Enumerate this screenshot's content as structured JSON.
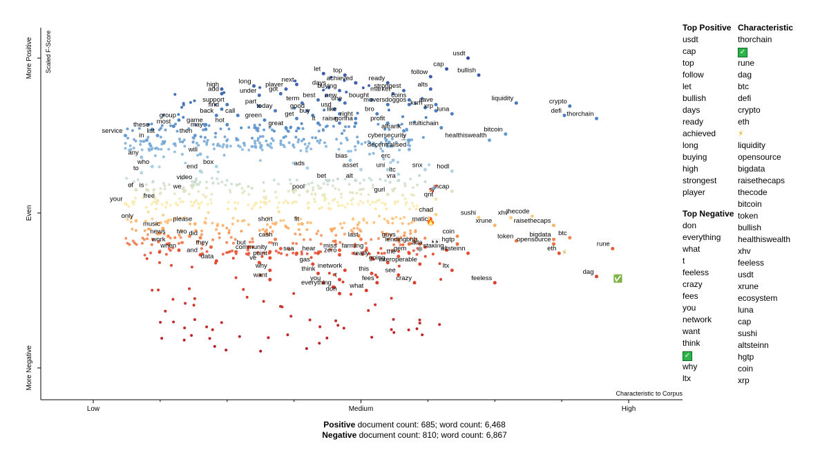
{
  "chart_data": {
    "type": "scatter",
    "title": "",
    "xlabel": "Characteristic to Corpus",
    "ylabel": "Scaled F-Score",
    "x_ticks": [
      "Low",
      "Medium",
      "High"
    ],
    "y_ticks": [
      "More Positive",
      "Even",
      "More Negative"
    ],
    "y_tick_values": [
      1,
      0,
      -1
    ],
    "xlim": [
      0,
      1
    ],
    "ylim": [
      -1,
      1
    ],
    "grid": false,
    "legend": "none",
    "color_scale": {
      "positive": "#3a56a8",
      "neutral": "#a9d3ea",
      "even": "#fde8a7",
      "negative": "#c2212b"
    },
    "points": [
      {
        "label": "usdt",
        "x": 0.7,
        "y": 1.0
      },
      {
        "label": "cap",
        "x": 0.66,
        "y": 0.93
      },
      {
        "label": "bullish",
        "x": 0.72,
        "y": 0.89
      },
      {
        "label": "follow",
        "x": 0.63,
        "y": 0.88
      },
      {
        "label": "let",
        "x": 0.43,
        "y": 0.9
      },
      {
        "label": "top",
        "x": 0.47,
        "y": 0.89
      },
      {
        "label": "achieved",
        "x": 0.49,
        "y": 0.84
      },
      {
        "label": "ready",
        "x": 0.55,
        "y": 0.84
      },
      {
        "label": "long",
        "x": 0.3,
        "y": 0.82
      },
      {
        "label": "next",
        "x": 0.38,
        "y": 0.83
      },
      {
        "label": "days",
        "x": 0.44,
        "y": 0.81
      },
      {
        "label": "high",
        "x": 0.24,
        "y": 0.8
      },
      {
        "label": "player",
        "x": 0.36,
        "y": 0.8
      },
      {
        "label": "buying",
        "x": 0.46,
        "y": 0.79
      },
      {
        "label": "alts",
        "x": 0.63,
        "y": 0.8
      },
      {
        "label": "strongest",
        "x": 0.58,
        "y": 0.79
      },
      {
        "label": "add",
        "x": 0.24,
        "y": 0.77
      },
      {
        "label": "under",
        "x": 0.31,
        "y": 0.76
      },
      {
        "label": "got",
        "x": 0.35,
        "y": 0.77
      },
      {
        "label": "market",
        "x": 0.56,
        "y": 0.77
      },
      {
        "label": "best",
        "x": 0.42,
        "y": 0.73
      },
      {
        "label": "new",
        "x": 0.46,
        "y": 0.73
      },
      {
        "label": "bought",
        "x": 0.52,
        "y": 0.73
      },
      {
        "label": "coins",
        "x": 0.59,
        "y": 0.73
      },
      {
        "label": "term",
        "x": 0.39,
        "y": 0.71
      },
      {
        "label": "one",
        "x": 0.47,
        "y": 0.71
      },
      {
        "label": "movers",
        "x": 0.55,
        "y": 0.7
      },
      {
        "label": "doggos",
        "x": 0.59,
        "y": 0.7
      },
      {
        "label": "aave",
        "x": 0.64,
        "y": 0.7
      },
      {
        "label": "liquidity",
        "x": 0.79,
        "y": 0.71
      },
      {
        "label": "support",
        "x": 0.25,
        "y": 0.7
      },
      {
        "label": "part",
        "x": 0.31,
        "y": 0.69
      },
      {
        "label": "ksm",
        "x": 0.62,
        "y": 0.68
      },
      {
        "label": "usd",
        "x": 0.45,
        "y": 0.67
      },
      {
        "label": "xrp",
        "x": 0.64,
        "y": 0.66
      },
      {
        "label": "crypto",
        "x": 0.89,
        "y": 0.69
      },
      {
        "label": "find",
        "x": 0.24,
        "y": 0.67
      },
      {
        "label": "today",
        "x": 0.34,
        "y": 0.66
      },
      {
        "label": "good",
        "x": 0.4,
        "y": 0.66
      },
      {
        "label": "like",
        "x": 0.46,
        "y": 0.64
      },
      {
        "label": "bro",
        "x": 0.53,
        "y": 0.64
      },
      {
        "label": "luna",
        "x": 0.67,
        "y": 0.64
      },
      {
        "label": "defi",
        "x": 0.88,
        "y": 0.63
      },
      {
        "label": "back",
        "x": 0.23,
        "y": 0.63
      },
      {
        "label": "call",
        "x": 0.27,
        "y": 0.63
      },
      {
        "label": "buy",
        "x": 0.41,
        "y": 0.63
      },
      {
        "label": "get",
        "x": 0.38,
        "y": 0.61
      },
      {
        "label": "right",
        "x": 0.49,
        "y": 0.61
      },
      {
        "label": "green",
        "x": 0.32,
        "y": 0.6
      },
      {
        "label": "thorchain",
        "x": 0.94,
        "y": 0.61
      },
      {
        "label": "group",
        "x": 0.16,
        "y": 0.6
      },
      {
        "label": "it",
        "x": 0.42,
        "y": 0.58
      },
      {
        "label": "raise",
        "x": 0.46,
        "y": 0.58
      },
      {
        "label": "gonna",
        "x": 0.49,
        "y": 0.58
      },
      {
        "label": "profit",
        "x": 0.55,
        "y": 0.58
      },
      {
        "label": "hot",
        "x": 0.25,
        "y": 0.57
      },
      {
        "label": "game",
        "x": 0.21,
        "y": 0.57
      },
      {
        "label": "most",
        "x": 0.15,
        "y": 0.56
      },
      {
        "label": "great",
        "x": 0.36,
        "y": 0.55
      },
      {
        "label": "multichain",
        "x": 0.65,
        "y": 0.55
      },
      {
        "label": "these",
        "x": 0.11,
        "y": 0.54
      },
      {
        "label": "may",
        "x": 0.21,
        "y": 0.54
      },
      {
        "label": "altrank",
        "x": 0.58,
        "y": 0.53
      },
      {
        "label": "service",
        "x": 0.06,
        "y": 0.5
      },
      {
        "label": "list",
        "x": 0.12,
        "y": 0.5
      },
      {
        "label": "then",
        "x": 0.19,
        "y": 0.5
      },
      {
        "label": "in",
        "x": 0.1,
        "y": 0.47
      },
      {
        "label": "bitcoin",
        "x": 0.77,
        "y": 0.51
      },
      {
        "label": "healthiswealth",
        "x": 0.74,
        "y": 0.47
      },
      {
        "label": "cybersecurity",
        "x": 0.59,
        "y": 0.47
      },
      {
        "label": "decentralised",
        "x": 0.59,
        "y": 0.41
      },
      {
        "label": "will",
        "x": 0.2,
        "y": 0.38
      },
      {
        "label": "any",
        "x": 0.09,
        "y": 0.36
      },
      {
        "label": "bias",
        "x": 0.48,
        "y": 0.34
      },
      {
        "label": "erc",
        "x": 0.56,
        "y": 0.34
      },
      {
        "label": "box",
        "x": 0.23,
        "y": 0.3
      },
      {
        "label": "who",
        "x": 0.11,
        "y": 0.3
      },
      {
        "label": "ads",
        "x": 0.4,
        "y": 0.29
      },
      {
        "label": "asset",
        "x": 0.5,
        "y": 0.28
      },
      {
        "label": "uni",
        "x": 0.55,
        "y": 0.28
      },
      {
        "label": "snx",
        "x": 0.62,
        "y": 0.28
      },
      {
        "label": "hodl",
        "x": 0.67,
        "y": 0.27
      },
      {
        "label": "end",
        "x": 0.2,
        "y": 0.27
      },
      {
        "label": "to",
        "x": 0.09,
        "y": 0.26
      },
      {
        "label": "ltc",
        "x": 0.57,
        "y": 0.25
      },
      {
        "label": "bet",
        "x": 0.44,
        "y": 0.21
      },
      {
        "label": "alt",
        "x": 0.49,
        "y": 0.21
      },
      {
        "label": "vra",
        "x": 0.57,
        "y": 0.21
      },
      {
        "label": "video",
        "x": 0.19,
        "y": 0.2
      },
      {
        "label": "of",
        "x": 0.08,
        "y": 0.15
      },
      {
        "label": "is",
        "x": 0.1,
        "y": 0.15
      },
      {
        "label": "we",
        "x": 0.17,
        "y": 0.14
      },
      {
        "label": "pool",
        "x": 0.4,
        "y": 0.14
      },
      {
        "label": "mcap",
        "x": 0.67,
        "y": 0.14
      },
      {
        "label": "gurl",
        "x": 0.55,
        "y": 0.12
      },
      {
        "label": "qnt",
        "x": 0.64,
        "y": 0.09
      },
      {
        "label": "free",
        "x": 0.12,
        "y": 0.08
      },
      {
        "label": "your",
        "x": 0.06,
        "y": 0.06
      },
      {
        "label": "chad",
        "x": 0.64,
        "y": -0.01
      },
      {
        "label": "sushi",
        "x": 0.72,
        "y": -0.03
      },
      {
        "label": "xhv",
        "x": 0.78,
        "y": -0.03
      },
      {
        "label": "thecode",
        "x": 0.82,
        "y": -0.02
      },
      {
        "label": "only",
        "x": 0.08,
        "y": -0.05
      },
      {
        "label": "matic",
        "x": 0.63,
        "y": -0.07
      },
      {
        "label": "please",
        "x": 0.19,
        "y": -0.07
      },
      {
        "label": "short",
        "x": 0.34,
        "y": -0.07
      },
      {
        "label": "fit",
        "x": 0.39,
        "y": -0.07
      },
      {
        "label": "xrune",
        "x": 0.75,
        "y": -0.08
      },
      {
        "label": "raisethecaps",
        "x": 0.86,
        "y": -0.08
      },
      {
        "label": "music",
        "x": 0.13,
        "y": -0.1
      },
      {
        "label": "news",
        "x": 0.14,
        "y": -0.15
      },
      {
        "label": "two",
        "x": 0.18,
        "y": -0.15
      },
      {
        "label": "did",
        "x": 0.2,
        "y": -0.16
      },
      {
        "label": "coin",
        "x": 0.68,
        "y": -0.15
      },
      {
        "label": "btc",
        "x": 0.89,
        "y": -0.16
      },
      {
        "label": "cash",
        "x": 0.34,
        "y": -0.17
      },
      {
        "label": "last",
        "x": 0.5,
        "y": -0.17
      },
      {
        "label": "guys",
        "x": 0.57,
        "y": -0.17
      },
      {
        "label": "token",
        "x": 0.79,
        "y": -0.18
      },
      {
        "label": "bigdata",
        "x": 0.86,
        "y": -0.17
      },
      {
        "label": "work",
        "x": 0.14,
        "y": -0.2
      },
      {
        "label": "lending",
        "x": 0.59,
        "y": -0.2
      },
      {
        "label": "bnb",
        "x": 0.61,
        "y": -0.2
      },
      {
        "label": "hgtp",
        "x": 0.68,
        "y": -0.2
      },
      {
        "label": "opensource",
        "x": 0.86,
        "y": -0.2
      },
      {
        "label": "they",
        "x": 0.22,
        "y": -0.22
      },
      {
        "label": "but",
        "x": 0.29,
        "y": -0.22
      },
      {
        "label": "ada",
        "x": 0.62,
        "y": -0.22
      },
      {
        "label": "rune",
        "x": 0.97,
        "y": -0.23
      },
      {
        "label": "when",
        "x": 0.16,
        "y": -0.24
      },
      {
        "label": "m",
        "x": 0.35,
        "y": -0.23
      },
      {
        "label": "miss",
        "x": 0.46,
        "y": -0.24
      },
      {
        "label": "farming",
        "x": 0.51,
        "y": -0.24
      },
      {
        "label": "staking",
        "x": 0.66,
        "y": -0.24
      },
      {
        "label": "community",
        "x": 0.33,
        "y": -0.25
      },
      {
        "label": "sea",
        "x": 0.38,
        "y": -0.26
      },
      {
        "label": "hear",
        "x": 0.42,
        "y": -0.26
      },
      {
        "label": "gem",
        "x": 0.59,
        "y": -0.26
      },
      {
        "label": "altsteinn",
        "x": 0.7,
        "y": -0.26
      },
      {
        "label": "eth",
        "x": 0.87,
        "y": -0.26
      },
      {
        "label": "and",
        "x": 0.2,
        "y": -0.27
      },
      {
        "label": "zero",
        "x": 0.46,
        "y": -0.27
      },
      {
        "label": "point",
        "x": 0.33,
        "y": -0.29
      },
      {
        "label": "really",
        "x": 0.52,
        "y": -0.29
      },
      {
        "label": "the",
        "x": 0.57,
        "y": -0.28
      },
      {
        "label": "data",
        "x": 0.23,
        "y": -0.31
      },
      {
        "label": "ve",
        "x": 0.31,
        "y": -0.32
      },
      {
        "label": "gas",
        "x": 0.41,
        "y": -0.33
      },
      {
        "label": "going",
        "x": 0.55,
        "y": -0.32
      },
      {
        "label": "interoperable",
        "x": 0.61,
        "y": -0.33
      },
      {
        "label": "inetwork",
        "x": 0.47,
        "y": -0.37
      },
      {
        "label": "ltx",
        "x": 0.67,
        "y": -0.37
      },
      {
        "label": "why",
        "x": 0.33,
        "y": -0.37
      },
      {
        "label": "think",
        "x": 0.42,
        "y": -0.39
      },
      {
        "label": "this",
        "x": 0.52,
        "y": -0.39
      },
      {
        "label": "see",
        "x": 0.57,
        "y": -0.4
      },
      {
        "label": "dag",
        "x": 0.94,
        "y": -0.41
      },
      {
        "label": "want",
        "x": 0.33,
        "y": -0.43
      },
      {
        "label": "t",
        "x": 0.46,
        "y": -0.43
      },
      {
        "label": "you",
        "x": 0.43,
        "y": -0.45
      },
      {
        "label": "fees",
        "x": 0.53,
        "y": -0.45
      },
      {
        "label": "crazy",
        "x": 0.6,
        "y": -0.45
      },
      {
        "label": "feeless",
        "x": 0.75,
        "y": -0.45
      },
      {
        "label": "everything",
        "x": 0.45,
        "y": -0.48
      },
      {
        "label": "what",
        "x": 0.51,
        "y": -0.5
      },
      {
        "label": "don",
        "x": 0.46,
        "y": -0.52
      }
    ],
    "annotations": [
      "🚀",
      "🔥",
      "👀",
      "❄",
      "⚡",
      "✅",
      "Ξ"
    ],
    "top_positive": [
      "usdt",
      "cap",
      "top",
      "follow",
      "let",
      "bullish",
      "days",
      "ready",
      "achieved",
      "long",
      "buying",
      "high",
      "strongest",
      "player"
    ],
    "top_negative": [
      "don",
      "everything",
      "what",
      "t",
      "feeless",
      "crazy",
      "fees",
      "you",
      "network",
      "want",
      "think",
      "✅",
      "why",
      "ltx"
    ],
    "characteristic": [
      "thorchain",
      "✅",
      "rune",
      "dag",
      "btc",
      "defi",
      "crypto",
      "eth",
      "⚡",
      "liquidity",
      "opensource",
      "bigdata",
      "raisethecaps",
      "thecode",
      "bitcoin",
      "token",
      "bullish",
      "healthiswealth",
      "xhv",
      "feeless",
      "usdt",
      "xrune",
      "ecosystem",
      "luna",
      "cap",
      "sushi",
      "altsteinn",
      "hgtp",
      "coin",
      "xrp"
    ]
  },
  "panels": {
    "top_positive_header": "Top Positive",
    "top_negative_header": "Top Negative",
    "characteristic_header": "Characteristic"
  },
  "footer": {
    "positive_label": "Positive",
    "positive_text": " document count: 685; word count: 6,468",
    "negative_label": "Negative",
    "negative_text": " document count: 810; word count: 6,867"
  }
}
